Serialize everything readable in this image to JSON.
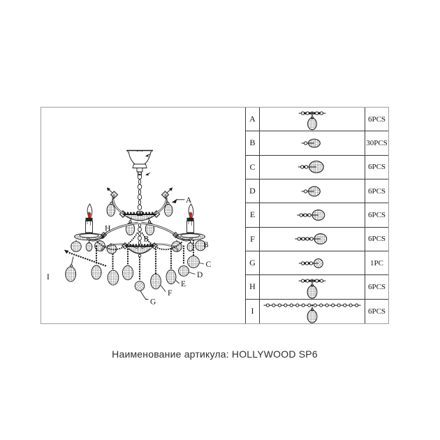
{
  "caption": "Наименование артикула: HOLLYWOOD SP6",
  "colors": {
    "ink": "#1a1a1a",
    "frame_border": "#9e9e9e",
    "table_lines": "#3c3c3c",
    "flame_red": "#c9241d",
    "paper": "#ffffff"
  },
  "diagram": {
    "title": "chandelier-assembly-drawing",
    "part_labels": [
      "A",
      "H",
      "B",
      "B",
      "C",
      "D",
      "E",
      "F",
      "G",
      "I"
    ]
  },
  "parts_table": {
    "rows": [
      {
        "label": "A",
        "qty": "6PCS",
        "icon": {
          "name": "bead-garland-with-pendant-icon",
          "kind": "chain-pendant",
          "beads": 5,
          "spacing": 6.8,
          "diamonds": true,
          "drop_w": 13,
          "drop_h": 17
        }
      },
      {
        "label": "B",
        "qty": "30PCS",
        "icon": {
          "name": "bead-with-oval-drop-icon",
          "kind": "bead-row",
          "beads": 1,
          "drop": "ball",
          "drop_w": 17,
          "drop_h": 12
        }
      },
      {
        "label": "C",
        "qty": "6PCS",
        "icon": {
          "name": "beads-with-large-ball-icon",
          "kind": "bead-row",
          "beads": 2,
          "drop": "ball",
          "drop_w": 21,
          "drop_h": 17
        }
      },
      {
        "label": "D",
        "qty": "6PCS",
        "icon": {
          "name": "bead-with-ball-icon",
          "kind": "bead-row",
          "beads": 1,
          "drop": "ball",
          "drop_w": 17,
          "drop_h": 14
        }
      },
      {
        "label": "E",
        "qty": "6PCS",
        "icon": {
          "name": "beads-with-ball-icon",
          "kind": "bead-row",
          "beads": 3,
          "drop": "ball",
          "drop_w": 18,
          "drop_h": 15
        }
      },
      {
        "label": "F",
        "qty": "6PCS",
        "icon": {
          "name": "beads-with-ball-icon",
          "kind": "bead-row",
          "beads": 4,
          "drop": "ball",
          "drop_w": 18,
          "drop_h": 15
        }
      },
      {
        "label": "G",
        "qty": "1PC",
        "icon": {
          "name": "beads-with-faceted-ball-icon",
          "kind": "bead-row",
          "beads": 3,
          "drop": "ball-faceted",
          "drop_w": 13,
          "drop_h": 13
        }
      },
      {
        "label": "H",
        "qty": "6PCS",
        "icon": {
          "name": "bead-garland-with-pendant-icon",
          "kind": "chain-pendant",
          "beads": 5,
          "spacing": 6.8,
          "diamonds": true,
          "drop_w": 14,
          "drop_h": 18.5
        }
      },
      {
        "label": "I",
        "qty": "6PCS",
        "icon": {
          "name": "long-bead-garland-with-pendant-icon",
          "kind": "chain-pendant",
          "beads": 16,
          "spacing": 8.6,
          "diamonds": false,
          "drop_w": 14,
          "drop_h": 18.5
        }
      }
    ]
  }
}
